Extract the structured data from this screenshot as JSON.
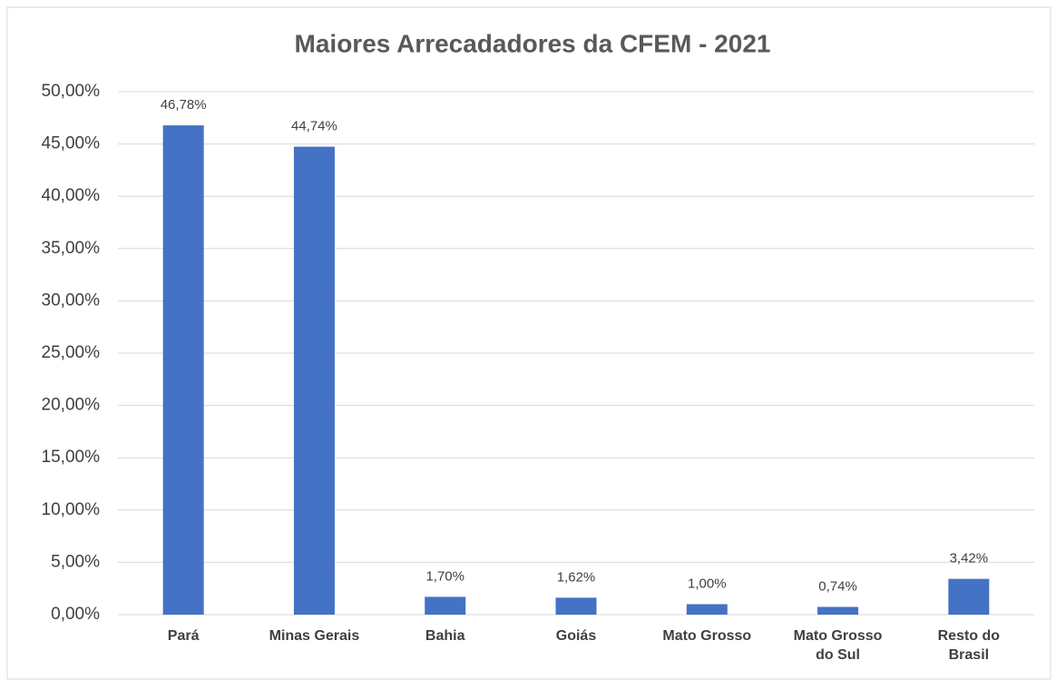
{
  "chart_data": {
    "type": "bar",
    "title": "Maiores Arrecadadores da CFEM - 2021",
    "categories": [
      "Pará",
      "Minas Gerais",
      "Bahia",
      "Goiás",
      "Mato Grosso",
      "Mato Grosso do Sul",
      "Resto do Brasil"
    ],
    "values": [
      46.78,
      44.74,
      1.7,
      1.62,
      1.0,
      0.74,
      3.42
    ],
    "value_labels": [
      "46,78%",
      "44,74%",
      "1,70%",
      "1,62%",
      "1,00%",
      "0,74%",
      "3,42%"
    ],
    "color": "#4472c4",
    "ylim": [
      0,
      50
    ],
    "yticks": [
      {
        "value": 0,
        "label": "0,00%"
      },
      {
        "value": 5,
        "label": "5,00%"
      },
      {
        "value": 10,
        "label": "10,00%"
      },
      {
        "value": 15,
        "label": "15,00%"
      },
      {
        "value": 20,
        "label": "20,00%"
      },
      {
        "value": 25,
        "label": "25,00%"
      },
      {
        "value": 30,
        "label": "30,00%"
      },
      {
        "value": 35,
        "label": "35,00%"
      },
      {
        "value": 40,
        "label": "40,00%"
      },
      {
        "value": 45,
        "label": "45,00%"
      },
      {
        "value": 50,
        "label": "50,00%"
      }
    ],
    "grid": true
  }
}
